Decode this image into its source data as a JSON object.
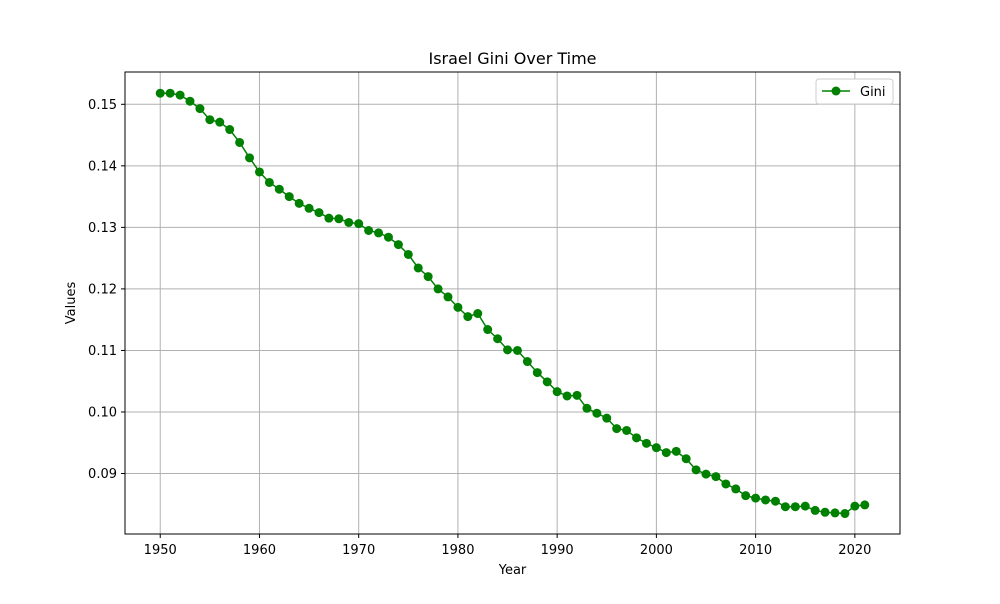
{
  "chart_data": {
    "type": "line",
    "title": "Israel Gini Over Time",
    "xlabel": "Year",
    "ylabel": "Values",
    "xlim": [
      1946.45,
      2024.55
    ],
    "ylim": [
      0.08017,
      0.15525
    ],
    "x_ticks": [
      1950,
      1960,
      1970,
      1980,
      1990,
      2000,
      2010,
      2020
    ],
    "y_ticks": [
      0.09,
      0.1,
      0.11,
      0.12,
      0.13,
      0.14,
      0.15
    ],
    "y_tick_labels": [
      "0.09",
      "0.10",
      "0.11",
      "0.12",
      "0.13",
      "0.14",
      "0.15"
    ],
    "grid": true,
    "legend_position": "top-right",
    "series": [
      {
        "name": "Gini",
        "color": "#008000",
        "marker": "circle",
        "x": [
          1950,
          1951,
          1952,
          1953,
          1954,
          1955,
          1956,
          1957,
          1958,
          1959,
          1960,
          1961,
          1962,
          1963,
          1964,
          1965,
          1966,
          1967,
          1968,
          1969,
          1970,
          1971,
          1972,
          1973,
          1974,
          1975,
          1976,
          1977,
          1978,
          1979,
          1980,
          1981,
          1982,
          1983,
          1984,
          1985,
          1986,
          1987,
          1988,
          1989,
          1990,
          1991,
          1992,
          1993,
          1994,
          1995,
          1996,
          1997,
          1998,
          1999,
          2000,
          2001,
          2002,
          2003,
          2004,
          2005,
          2006,
          2007,
          2008,
          2009,
          2010,
          2011,
          2012,
          2013,
          2014,
          2015,
          2016,
          2017,
          2018,
          2019,
          2020,
          2021
        ],
        "y": [
          0.1518,
          0.1518,
          0.1515,
          0.1505,
          0.1493,
          0.1475,
          0.1471,
          0.1459,
          0.1438,
          0.1413,
          0.139,
          0.1373,
          0.1362,
          0.135,
          0.1339,
          0.1331,
          0.1324,
          0.1315,
          0.1314,
          0.1308,
          0.1306,
          0.1295,
          0.1291,
          0.1284,
          0.1272,
          0.1256,
          0.1234,
          0.122,
          0.12,
          0.1187,
          0.117,
          0.1155,
          0.116,
          0.1134,
          0.1119,
          0.1101,
          0.11,
          0.1082,
          0.1064,
          0.1049,
          0.1033,
          0.1026,
          0.1027,
          0.1006,
          0.0998,
          0.099,
          0.0973,
          0.097,
          0.0958,
          0.0949,
          0.0942,
          0.0934,
          0.0936,
          0.0924,
          0.0906,
          0.0899,
          0.0895,
          0.0883,
          0.0875,
          0.0864,
          0.086,
          0.0857,
          0.0855,
          0.0846,
          0.0846,
          0.0847,
          0.084,
          0.0837,
          0.0836,
          0.0835,
          0.0847,
          0.0849
        ]
      }
    ]
  }
}
